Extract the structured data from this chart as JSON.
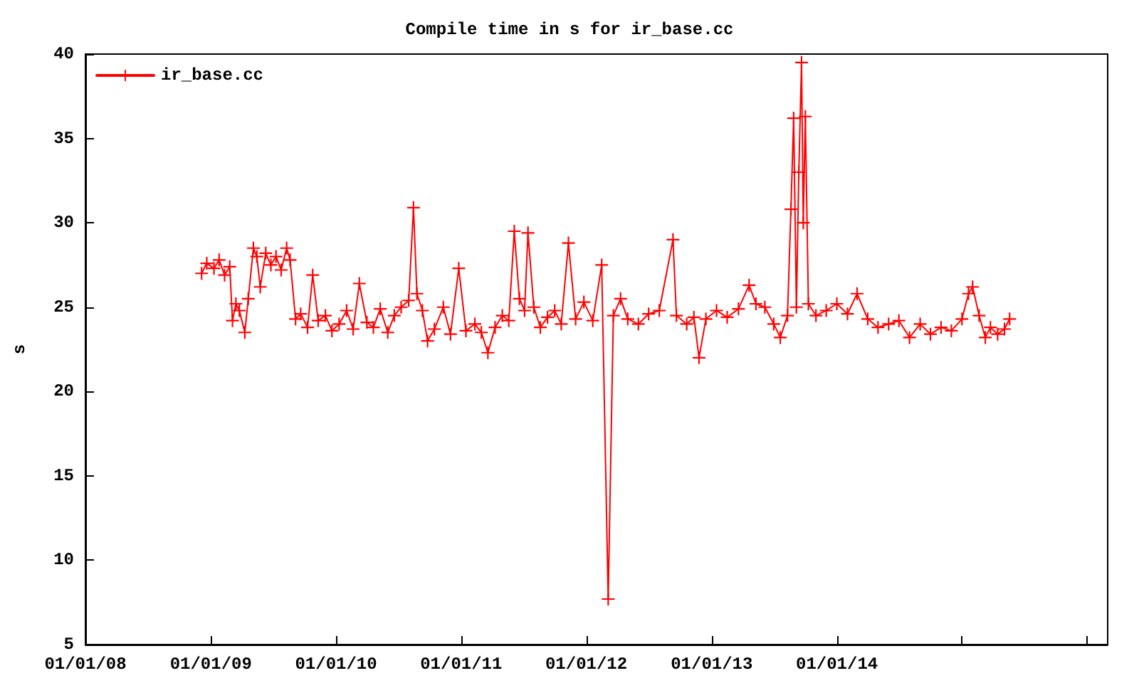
{
  "chart_data": {
    "type": "line",
    "title": "Compile time in s for ir_base.cc",
    "ylabel": "s",
    "x": [
      "2008-12-05",
      "2008-12-20",
      "2009-01-10",
      "2009-01-25",
      "2009-02-10",
      "2009-02-25",
      "2009-03-05",
      "2009-03-15",
      "2009-03-25",
      "2009-04-10",
      "2009-04-20",
      "2009-05-05",
      "2009-05-15",
      "2009-05-25",
      "2009-06-10",
      "2009-06-25",
      "2009-07-10",
      "2009-07-25",
      "2009-08-10",
      "2009-08-20",
      "2009-09-05",
      "2009-09-20",
      "2009-10-10",
      "2009-10-25",
      "2009-11-10",
      "2009-12-01",
      "2009-12-20",
      "2010-01-10",
      "2010-02-01",
      "2010-02-20",
      "2010-03-10",
      "2010-04-01",
      "2010-04-20",
      "2010-05-10",
      "2010-06-01",
      "2010-06-20",
      "2010-07-10",
      "2010-08-01",
      "2010-08-15",
      "2010-08-25",
      "2010-09-10",
      "2010-09-25",
      "2010-10-15",
      "2010-11-10",
      "2010-12-01",
      "2010-12-25",
      "2011-01-15",
      "2011-02-10",
      "2011-03-01",
      "2011-03-20",
      "2011-04-10",
      "2011-05-01",
      "2011-05-20",
      "2011-06-05",
      "2011-06-20",
      "2011-07-05",
      "2011-07-15",
      "2011-08-01",
      "2011-08-20",
      "2011-09-10",
      "2011-10-01",
      "2011-10-20",
      "2011-11-10",
      "2011-12-01",
      "2011-12-25",
      "2012-01-20",
      "2012-02-15",
      "2012-03-05",
      "2012-03-20",
      "2012-04-10",
      "2012-05-01",
      "2012-06-01",
      "2012-07-01",
      "2012-08-01",
      "2012-09-10",
      "2012-09-20",
      "2012-10-20",
      "2012-11-10",
      "2012-11-25",
      "2012-12-15",
      "2013-01-15",
      "2013-02-15",
      "2013-03-20",
      "2013-04-20",
      "2013-05-10",
      "2013-06-05",
      "2013-07-01",
      "2013-07-20",
      "2013-08-10",
      "2013-08-20",
      "2013-08-28",
      "2013-09-05",
      "2013-09-12",
      "2013-09-20",
      "2013-09-25",
      "2013-10-01",
      "2013-10-10",
      "2013-11-01",
      "2013-12-01",
      "2014-01-01",
      "2014-02-01",
      "2014-03-01",
      "2014-04-01",
      "2014-05-01",
      "2014-06-01",
      "2014-07-01",
      "2014-08-01",
      "2014-09-01",
      "2014-10-01",
      "2014-11-01",
      "2014-12-01",
      "2015-01-01",
      "2015-01-20",
      "2015-02-01",
      "2015-02-20",
      "2015-03-10",
      "2015-03-25",
      "2015-04-15",
      "2015-05-05",
      "2015-05-20"
    ],
    "series": [
      {
        "name": "ir_base.cc",
        "color": "#ff0000",
        "values": [
          27.0,
          27.6,
          27.3,
          27.8,
          26.9,
          27.4,
          24.2,
          25.2,
          24.8,
          23.5,
          25.5,
          28.5,
          28.0,
          26.2,
          28.2,
          27.5,
          28.0,
          27.2,
          28.5,
          27.8,
          24.3,
          24.6,
          23.8,
          26.9,
          24.2,
          24.5,
          23.6,
          24.0,
          24.8,
          23.7,
          26.4,
          24.1,
          23.8,
          24.9,
          23.5,
          24.5,
          25.0,
          25.4,
          30.9,
          25.8,
          24.8,
          23.0,
          23.7,
          25.0,
          23.4,
          27.3,
          23.6,
          24.0,
          23.5,
          22.3,
          23.8,
          24.5,
          24.2,
          29.5,
          25.5,
          24.8,
          29.4,
          25.0,
          23.8,
          24.4,
          24.8,
          24.0,
          28.8,
          24.3,
          25.3,
          24.2,
          27.5,
          7.7,
          24.5,
          25.5,
          24.3,
          24.0,
          24.6,
          24.8,
          29.0,
          24.5,
          24.0,
          24.4,
          22.0,
          24.3,
          24.8,
          24.4,
          24.9,
          26.3,
          25.2,
          25.0,
          24.0,
          23.2,
          24.5,
          30.8,
          36.2,
          25.0,
          33.0,
          39.5,
          30.0,
          36.3,
          25.2,
          24.5,
          24.8,
          25.2,
          24.6,
          25.8,
          24.3,
          23.8,
          24.0,
          24.2,
          23.2,
          24.0,
          23.4,
          23.8,
          23.6,
          24.3,
          25.8,
          26.2,
          24.5,
          23.2,
          23.8,
          23.4,
          23.7,
          24.3
        ]
      }
    ],
    "xlim": [
      "2008-01-01",
      "2016-03-01"
    ],
    "xticks": [
      {
        "value": "2008-01-01",
        "label": "01/01/08"
      },
      {
        "value": "2009-01-01",
        "label": "01/01/09"
      },
      {
        "value": "2010-01-01",
        "label": "01/01/10"
      },
      {
        "value": "2011-01-01",
        "label": "01/01/11"
      },
      {
        "value": "2012-01-01",
        "label": "01/01/12"
      },
      {
        "value": "2013-01-01",
        "label": "01/01/13"
      },
      {
        "value": "2014-01-01",
        "label": "01/01/14"
      },
      {
        "value": "2015-01-01",
        "label": null
      },
      {
        "value": "2016-01-01",
        "label": null
      }
    ],
    "ylim": [
      5,
      40
    ],
    "yticks": [
      5,
      10,
      15,
      20,
      25,
      30,
      35,
      40
    ],
    "grid": false,
    "legend": "top left",
    "marker": "cross",
    "line_style": "solid"
  }
}
